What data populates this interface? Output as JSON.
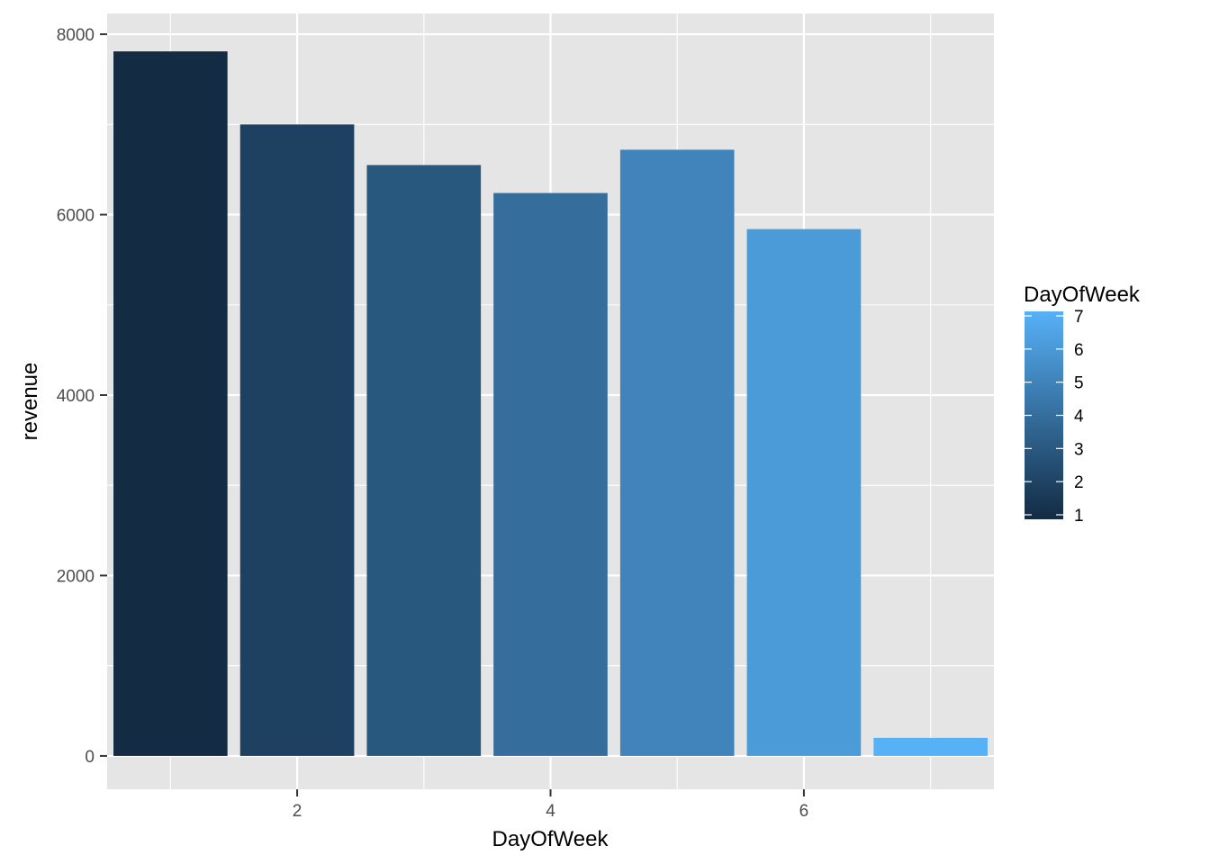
{
  "chart_data": {
    "type": "bar",
    "x": [
      1,
      2,
      3,
      4,
      5,
      6,
      7
    ],
    "values": [
      7810,
      7000,
      6550,
      6240,
      6720,
      5840,
      200
    ],
    "xlabel": "DayOfWeek",
    "ylabel": "revenue",
    "xlim": [
      0.5,
      7.5
    ],
    "ylim": [
      -370,
      8230
    ],
    "x_ticks": [
      2,
      4,
      6
    ],
    "y_ticks": [
      0,
      2000,
      4000,
      6000,
      8000
    ],
    "x_tick_labels": [
      "2",
      "4",
      "6"
    ],
    "y_tick_labels": [
      "0",
      "2000",
      "4000",
      "6000",
      "8000"
    ],
    "grid": true,
    "fill_scale": {
      "title": "DayOfWeek",
      "low": 1,
      "high": 7,
      "low_color": "#132B43",
      "high_color": "#56B1F7",
      "breaks": [
        1,
        2,
        3,
        4,
        5,
        6,
        7
      ],
      "break_labels": [
        "1",
        "2",
        "3",
        "4",
        "5",
        "6",
        "7"
      ]
    },
    "legend_position": "right",
    "panel_background": "#E5E5E5",
    "grid_color": "#FFFFFF"
  }
}
